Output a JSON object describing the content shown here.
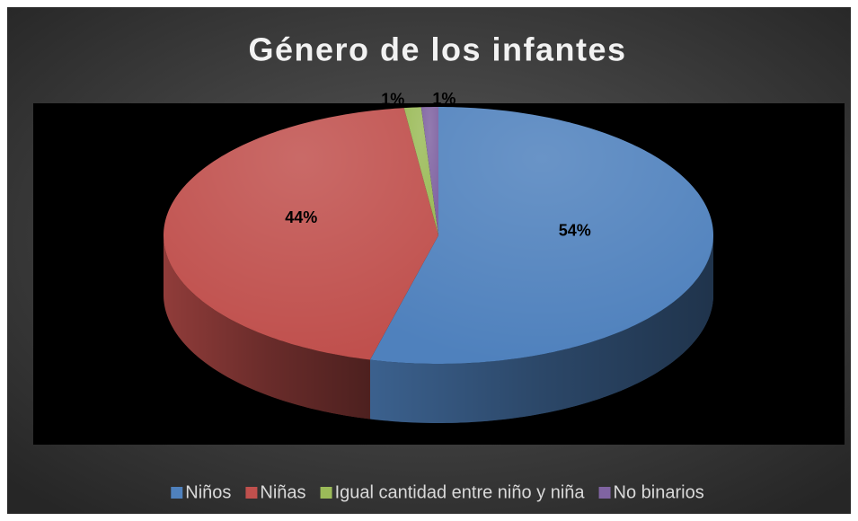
{
  "chart_data": {
    "type": "pie",
    "title": "Género de los infantes",
    "categories": [
      "Niños",
      "Niñas",
      "Igual cantidad entre niño y niña",
      "No binarios"
    ],
    "values": [
      54,
      44,
      1,
      1
    ],
    "value_labels": [
      "54%",
      "44%",
      "1%",
      "1%"
    ],
    "colors": [
      "#4f81bd",
      "#c0504d",
      "#9bbb59",
      "#8064a2"
    ],
    "legend": "bottom"
  }
}
